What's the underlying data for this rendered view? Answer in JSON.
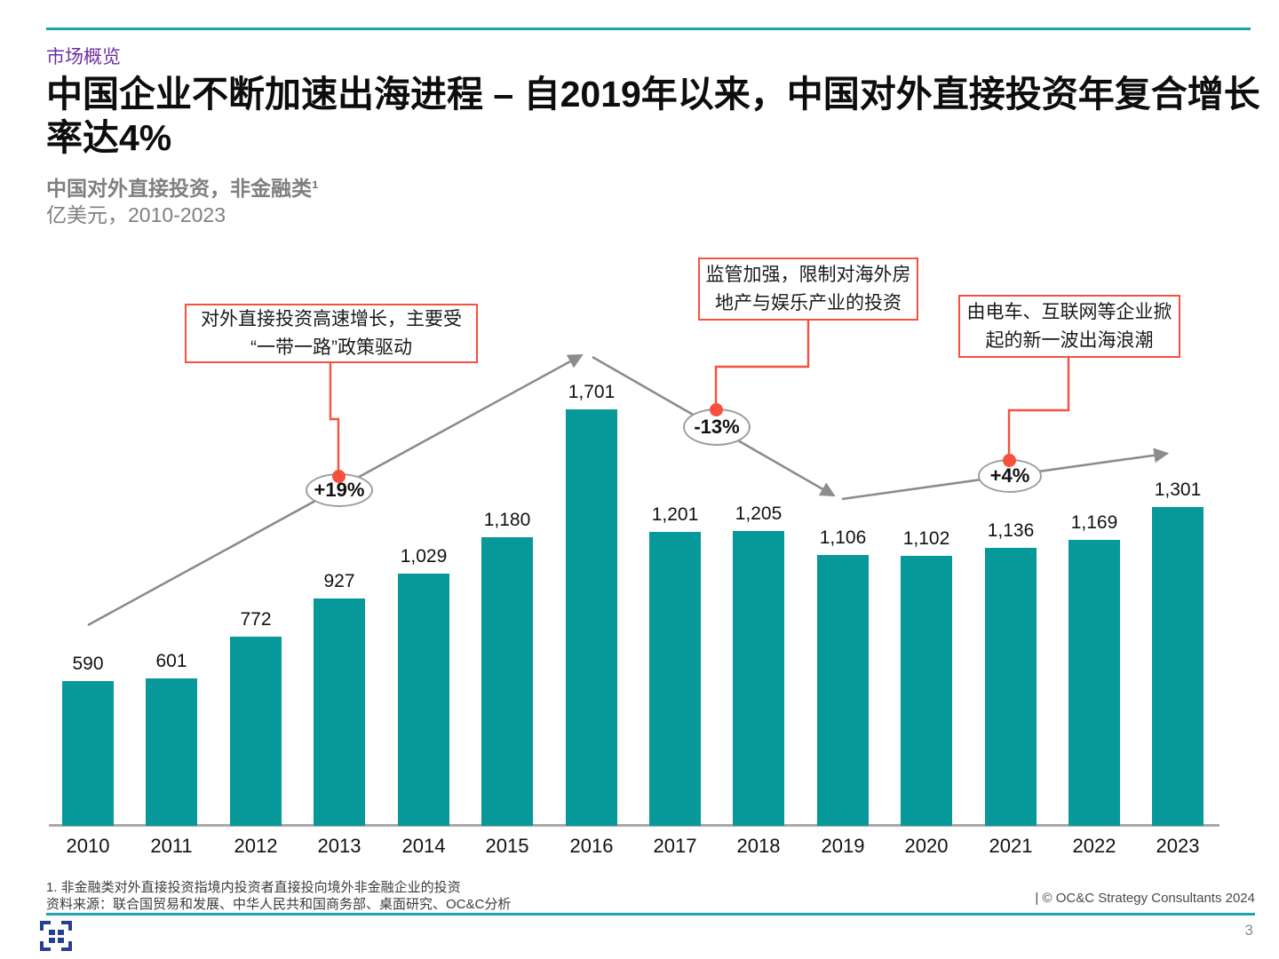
{
  "slide": {
    "eyebrow": "市场概览",
    "title_line1": "中国企业不断加速出海进程 – 自2019年以来，中国对外直接投资年复合增长",
    "title_line2": "率达4%",
    "subtitle_bold": "中国对外直接投资，非金融类¹",
    "subtitle_unit": "亿美元，2010-2023",
    "footnote": "1. 非金融类对外直接投资指境内投资者直接投向境外非金融企业的投资",
    "source": "资料来源：联合国贸易和发展、中华人民共和国商务部、桌面研究、OC&C分析",
    "copyright": "| © OC&C Strategy Consultants 2024",
    "page_number": "3"
  },
  "annotations": [
    {
      "lines": [
        "对外直接投资高速增长，主要受",
        "“一带一路”政策驱动"
      ]
    },
    {
      "lines": [
        "监管加强，限制对海外房",
        "地产与娱乐产业的投资"
      ]
    },
    {
      "lines": [
        "由电车、互联网等企业掀",
        "起的新一波出海浪潮"
      ]
    }
  ],
  "chart_data": {
    "type": "bar",
    "title": "中国对外直接投资，非金融类",
    "unit": "亿美元",
    "categories": [
      "2010",
      "2011",
      "2012",
      "2013",
      "2014",
      "2015",
      "2016",
      "2017",
      "2018",
      "2019",
      "2020",
      "2021",
      "2022",
      "2023"
    ],
    "values": [
      590,
      601,
      772,
      927,
      1029,
      1180,
      1701,
      1201,
      1205,
      1106,
      1102,
      1136,
      1169,
      1301
    ],
    "value_labels": [
      "590",
      "601",
      "772",
      "927",
      "1,029",
      "1,180",
      "1,701",
      "1,201",
      "1,205",
      "1,106",
      "1,102",
      "1,136",
      "1,169",
      "1,301"
    ],
    "growth_markers": [
      {
        "label": "+19%",
        "segment": "2010-2016 rise"
      },
      {
        "label": "-13%",
        "segment": "2016-2019 decline"
      },
      {
        "label": "+4%",
        "segment": "2019-2023 rise"
      }
    ],
    "xlabel": "",
    "ylabel": "",
    "y_axis_visible": false,
    "grid": false,
    "legend": "none",
    "colors": {
      "bar": "#079899",
      "accent_rule": "#1ca3ab",
      "eyebrow_purple": "#7030a0",
      "callout_red": "#f8503f",
      "trend_gray": "#8c8c8c"
    }
  }
}
